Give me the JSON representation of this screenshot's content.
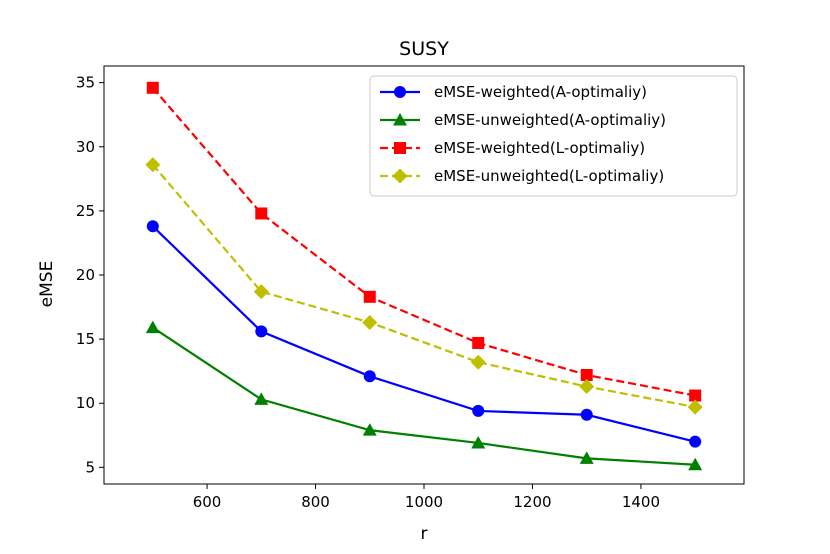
{
  "chart_data": {
    "type": "line",
    "title": "SUSY",
    "xlabel": "r",
    "ylabel": "eMSE",
    "xlim": [
      410,
      1590
    ],
    "ylim": [
      3.7,
      36.3
    ],
    "xticks": [
      600,
      800,
      1000,
      1200,
      1400
    ],
    "yticks": [
      5,
      10,
      15,
      20,
      25,
      30,
      35
    ],
    "grid": false,
    "legend_position": "top-right",
    "x": [
      500,
      700,
      900,
      1100,
      1300,
      1500
    ],
    "series": [
      {
        "name": "eMSE-weighted(A-optimaliy)",
        "color": "#0000ff",
        "marker": "circle",
        "linestyle": "solid",
        "values": [
          23.8,
          15.6,
          12.1,
          9.4,
          9.1,
          7.0
        ]
      },
      {
        "name": "eMSE-unweighted(A-optimaliy)",
        "color": "#008000",
        "marker": "triangle",
        "linestyle": "solid",
        "values": [
          15.9,
          10.3,
          7.9,
          6.9,
          5.7,
          5.2
        ]
      },
      {
        "name": "eMSE-weighted(L-optimaliy)",
        "color": "#ff0000",
        "marker": "square",
        "linestyle": "dashed",
        "values": [
          34.6,
          24.8,
          18.3,
          14.7,
          12.2,
          10.6
        ]
      },
      {
        "name": "eMSE-unweighted(L-optimaliy)",
        "color": "#bfbf00",
        "marker": "diamond",
        "linestyle": "dashed",
        "values": [
          28.6,
          18.7,
          16.3,
          13.2,
          11.3,
          9.7
        ]
      }
    ]
  }
}
